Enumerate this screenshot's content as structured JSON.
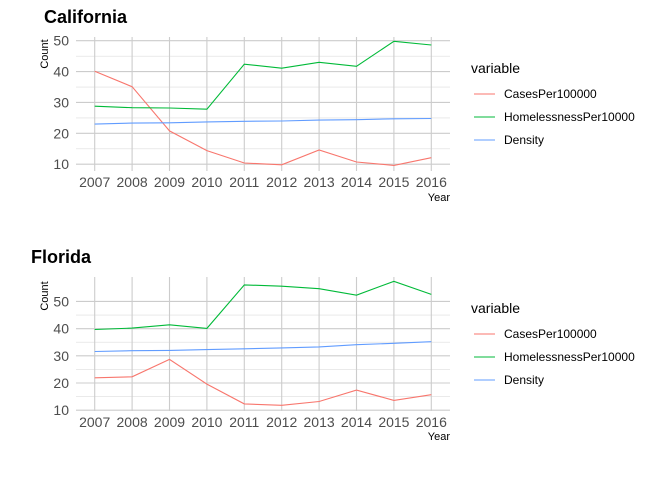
{
  "legend_title": "variable",
  "chart_data": [
    {
      "type": "line",
      "title": "California",
      "xlabel": "Year",
      "ylabel": "Count",
      "categories": [
        "2007",
        "2008",
        "2009",
        "2010",
        "2011",
        "2012",
        "2013",
        "2014",
        "2015",
        "2016"
      ],
      "ylim": [
        7.8,
        51.2
      ],
      "yticks": [
        10,
        20,
        30,
        40,
        50
      ],
      "grid": true,
      "legend_position": "right",
      "series": [
        {
          "name": "CasesPer100000",
          "color": "#F8766D",
          "values": [
            40.1,
            35.1,
            20.8,
            14.4,
            10.4,
            9.8,
            14.6,
            10.7,
            9.6,
            12.1
          ]
        },
        {
          "name": "HomelessnessPer10000",
          "color": "#00BA38",
          "values": [
            28.8,
            28.3,
            28.2,
            27.8,
            42.4,
            41.1,
            43.0,
            41.7,
            49.8,
            48.6
          ]
        },
        {
          "name": "Density",
          "color": "#619CFF",
          "values": [
            23.0,
            23.3,
            23.4,
            23.7,
            23.9,
            24.0,
            24.3,
            24.4,
            24.7,
            24.8
          ]
        }
      ]
    },
    {
      "type": "line",
      "title": "Florida",
      "xlabel": "Year",
      "ylabel": "Count",
      "categories": [
        "2007",
        "2008",
        "2009",
        "2010",
        "2011",
        "2012",
        "2013",
        "2014",
        "2015",
        "2016"
      ],
      "ylim": [
        9.7,
        59.0
      ],
      "yticks": [
        10,
        20,
        30,
        40,
        50
      ],
      "grid": true,
      "legend_position": "right",
      "series": [
        {
          "name": "CasesPer100000",
          "color": "#F8766D",
          "values": [
            21.9,
            22.3,
            28.7,
            19.6,
            12.3,
            11.8,
            13.2,
            17.4,
            13.6,
            15.7
          ]
        },
        {
          "name": "HomelessnessPer10000",
          "color": "#00BA38",
          "values": [
            39.7,
            40.2,
            41.4,
            40.1,
            56.1,
            55.6,
            54.7,
            52.3,
            57.4,
            52.6
          ]
        },
        {
          "name": "Density",
          "color": "#619CFF",
          "values": [
            31.6,
            31.9,
            32.0,
            32.3,
            32.6,
            32.9,
            33.3,
            34.1,
            34.6,
            35.2
          ]
        }
      ]
    }
  ]
}
